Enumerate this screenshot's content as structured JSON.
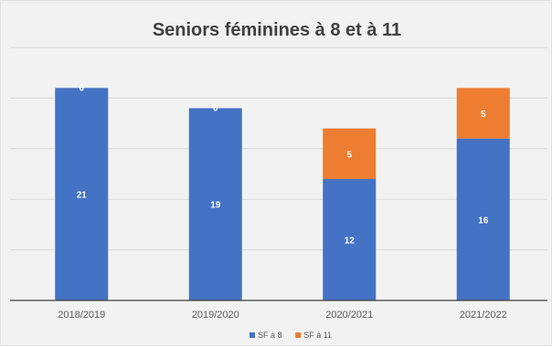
{
  "chart_data": {
    "type": "bar",
    "stacked": true,
    "title": "Seniors féminines à 8 et à 11",
    "xlabel": "",
    "ylabel": "",
    "categories": [
      "2018/2019",
      "2019/2020",
      "2020/2021",
      "2021/2022"
    ],
    "series": [
      {
        "name": "SF à 8",
        "color": "#4472c4",
        "values": [
          21,
          19,
          12,
          16
        ],
        "labels": [
          "21",
          "19",
          "12",
          "16"
        ]
      },
      {
        "name": "SF à 11",
        "color": "#ed7d31",
        "values": [
          0,
          0,
          5,
          5
        ],
        "labels": [
          "0",
          "0",
          "5",
          "5"
        ]
      }
    ],
    "ylim": [
      0,
      25
    ],
    "y_ticks_shown": false,
    "grid": true,
    "gridline_step": 5,
    "legend": "bottom"
  }
}
